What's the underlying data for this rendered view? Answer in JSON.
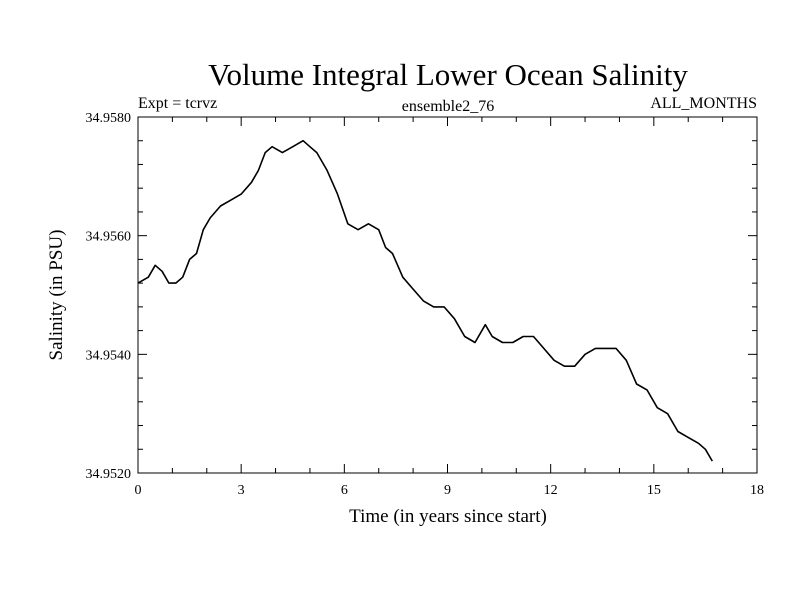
{
  "chart_data": {
    "type": "line",
    "title": "Volume Integral Lower Ocean Salinity",
    "subtitle_left": "Expt = tcrvz",
    "subtitle_center": "ensemble2_76",
    "subtitle_right": "ALL_MONTHS",
    "xlabel": "Time (in years since start)",
    "ylabel": "Salinity (in PSU)",
    "xlim": [
      0,
      18
    ],
    "ylim": [
      34.952,
      34.958
    ],
    "x_ticks": [
      0,
      3,
      6,
      9,
      12,
      15,
      18
    ],
    "x_tick_labels": [
      "0",
      "3",
      "6",
      "9",
      "12",
      "15",
      "18"
    ],
    "y_ticks": [
      34.952,
      34.954,
      34.956,
      34.958
    ],
    "y_tick_labels": [
      "34.9520",
      "34.9540",
      "34.9560",
      "34.9580"
    ],
    "x_minor_step": 1,
    "y_minor_step": 0.0004,
    "series": [
      {
        "name": "salinity",
        "x": [
          0,
          0.3,
          0.5,
          0.7,
          0.9,
          1.1,
          1.3,
          1.5,
          1.7,
          1.9,
          2.1,
          2.4,
          2.7,
          3.0,
          3.3,
          3.5,
          3.7,
          3.9,
          4.2,
          4.5,
          4.8,
          5.0,
          5.2,
          5.5,
          5.8,
          6.1,
          6.4,
          6.7,
          7.0,
          7.2,
          7.4,
          7.7,
          8.0,
          8.3,
          8.6,
          8.9,
          9.2,
          9.5,
          9.8,
          10.1,
          10.3,
          10.6,
          10.9,
          11.2,
          11.5,
          11.8,
          12.1,
          12.4,
          12.7,
          13.0,
          13.3,
          13.6,
          13.9,
          14.2,
          14.5,
          14.8,
          15.1,
          15.4,
          15.7,
          16.0,
          16.3,
          16.5,
          16.7
        ],
        "y": [
          34.9552,
          34.9553,
          34.9555,
          34.9554,
          34.9552,
          34.9552,
          34.9553,
          34.9556,
          34.9557,
          34.9561,
          34.9563,
          34.9565,
          34.9566,
          34.9567,
          34.9569,
          34.9571,
          34.9574,
          34.9575,
          34.9574,
          34.9575,
          34.9576,
          34.9575,
          34.9574,
          34.9571,
          34.9567,
          34.9562,
          34.9561,
          34.9562,
          34.9561,
          34.9558,
          34.9557,
          34.9553,
          34.9551,
          34.9549,
          34.9548,
          34.9548,
          34.9546,
          34.9543,
          34.9542,
          34.9545,
          34.9543,
          34.9542,
          34.9542,
          34.9543,
          34.9543,
          34.9541,
          34.9539,
          34.9538,
          34.9538,
          34.954,
          34.9541,
          34.9541,
          34.9541,
          34.9539,
          34.9535,
          34.9534,
          34.9531,
          34.953,
          34.9527,
          34.9526,
          34.9525,
          34.9524,
          34.9522
        ]
      }
    ]
  },
  "colors": {
    "line": "#000000",
    "axis": "#000000",
    "background": "#ffffff"
  }
}
